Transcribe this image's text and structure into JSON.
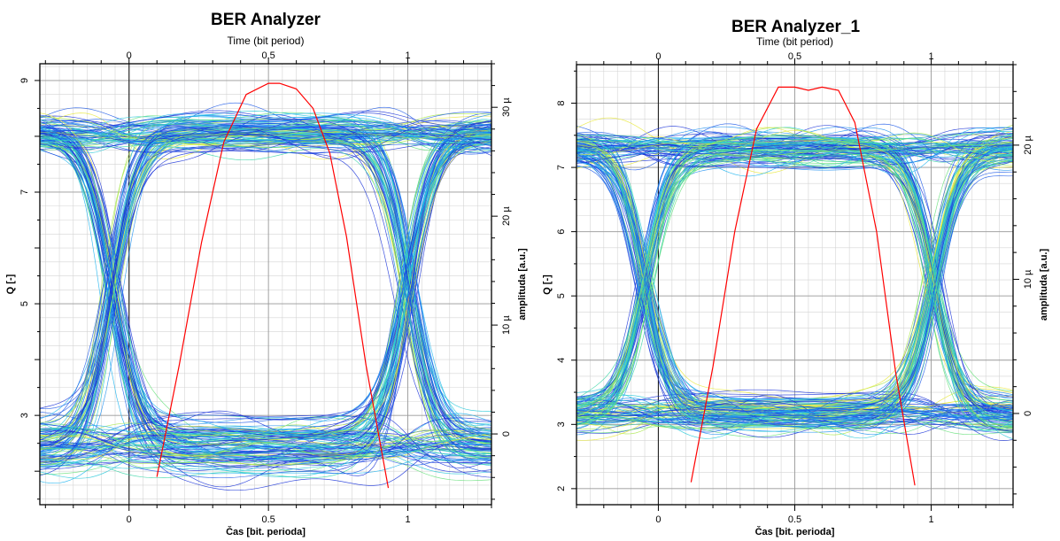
{
  "chart_data": [
    {
      "type": "line",
      "title": "BER Analyzer",
      "top_xlabel": "Time (bit period)",
      "xlabel": "Čas [bit. perioda]",
      "ylabel": "Q [-]",
      "y2label": "amplituda [a.u.]",
      "xlim": [
        -0.32,
        1.3
      ],
      "ylim": [
        1.4,
        9.3
      ],
      "y2lim": [
        -6.5,
        34
      ],
      "xticks": [
        0,
        0.5,
        1
      ],
      "xtick_labels": [
        "0",
        "0.5",
        "1"
      ],
      "yticks": [
        3,
        5,
        7,
        9
      ],
      "ytick_labels": [
        "3",
        "5",
        "7",
        "9"
      ],
      "y2ticks": [
        0,
        10,
        20,
        30
      ],
      "y2tick_labels": [
        "0",
        "10 µ",
        "20 µ",
        "30 µ"
      ],
      "grid": true,
      "eye_diagram": {
        "high_level": 8.05,
        "low_level": 2.45,
        "high_band": [
          7.5,
          8.7
        ],
        "low_band": [
          1.8,
          3.9
        ],
        "crossings": [
          -0.06,
          1.0
        ],
        "color_scale": "density (blue to yellow)"
      },
      "q_curve": {
        "color": "#ff0000",
        "x": [
          0.1,
          0.18,
          0.26,
          0.34,
          0.42,
          0.5,
          0.54,
          0.6,
          0.66,
          0.72,
          0.78,
          0.85,
          0.93
        ],
        "y": [
          1.9,
          3.9,
          6.1,
          7.9,
          8.75,
          8.95,
          8.95,
          8.85,
          8.5,
          7.7,
          6.2,
          3.9,
          1.7
        ]
      }
    },
    {
      "type": "line",
      "title": "BER Analyzer_1",
      "top_xlabel": "Time (bit period)",
      "xlabel": "Čas [bit. perioda]",
      "ylabel": "Q [-]",
      "y2label": "amplituda [a.u.]",
      "xlim": [
        -0.3,
        1.3
      ],
      "ylim": [
        1.75,
        8.6
      ],
      "y2lim": [
        -6.8,
        26
      ],
      "xticks": [
        0,
        0.5,
        1
      ],
      "xtick_labels": [
        "0",
        "0.5",
        "1"
      ],
      "yticks": [
        2,
        3,
        4,
        5,
        6,
        7,
        8
      ],
      "ytick_labels": [
        "2",
        "3",
        "4",
        "5",
        "6",
        "7",
        "8"
      ],
      "y2ticks": [
        0,
        10,
        20
      ],
      "y2tick_labels": [
        "0",
        "10 µ",
        "20 µ"
      ],
      "grid": true,
      "eye_diagram": {
        "high_level": 7.3,
        "low_level": 3.15,
        "high_band": [
          6.9,
          7.9
        ],
        "low_band": [
          2.6,
          3.7
        ],
        "crossings": [
          -0.05,
          1.01
        ],
        "color_scale": "density (blue to yellow)"
      },
      "q_curve": {
        "color": "#ff0000",
        "x": [
          0.12,
          0.2,
          0.28,
          0.36,
          0.44,
          0.5,
          0.55,
          0.6,
          0.66,
          0.72,
          0.8,
          0.87,
          0.94
        ],
        "y": [
          2.1,
          3.9,
          6.0,
          7.6,
          8.25,
          8.25,
          8.2,
          8.25,
          8.2,
          7.7,
          6.0,
          3.8,
          2.05
        ]
      }
    }
  ]
}
